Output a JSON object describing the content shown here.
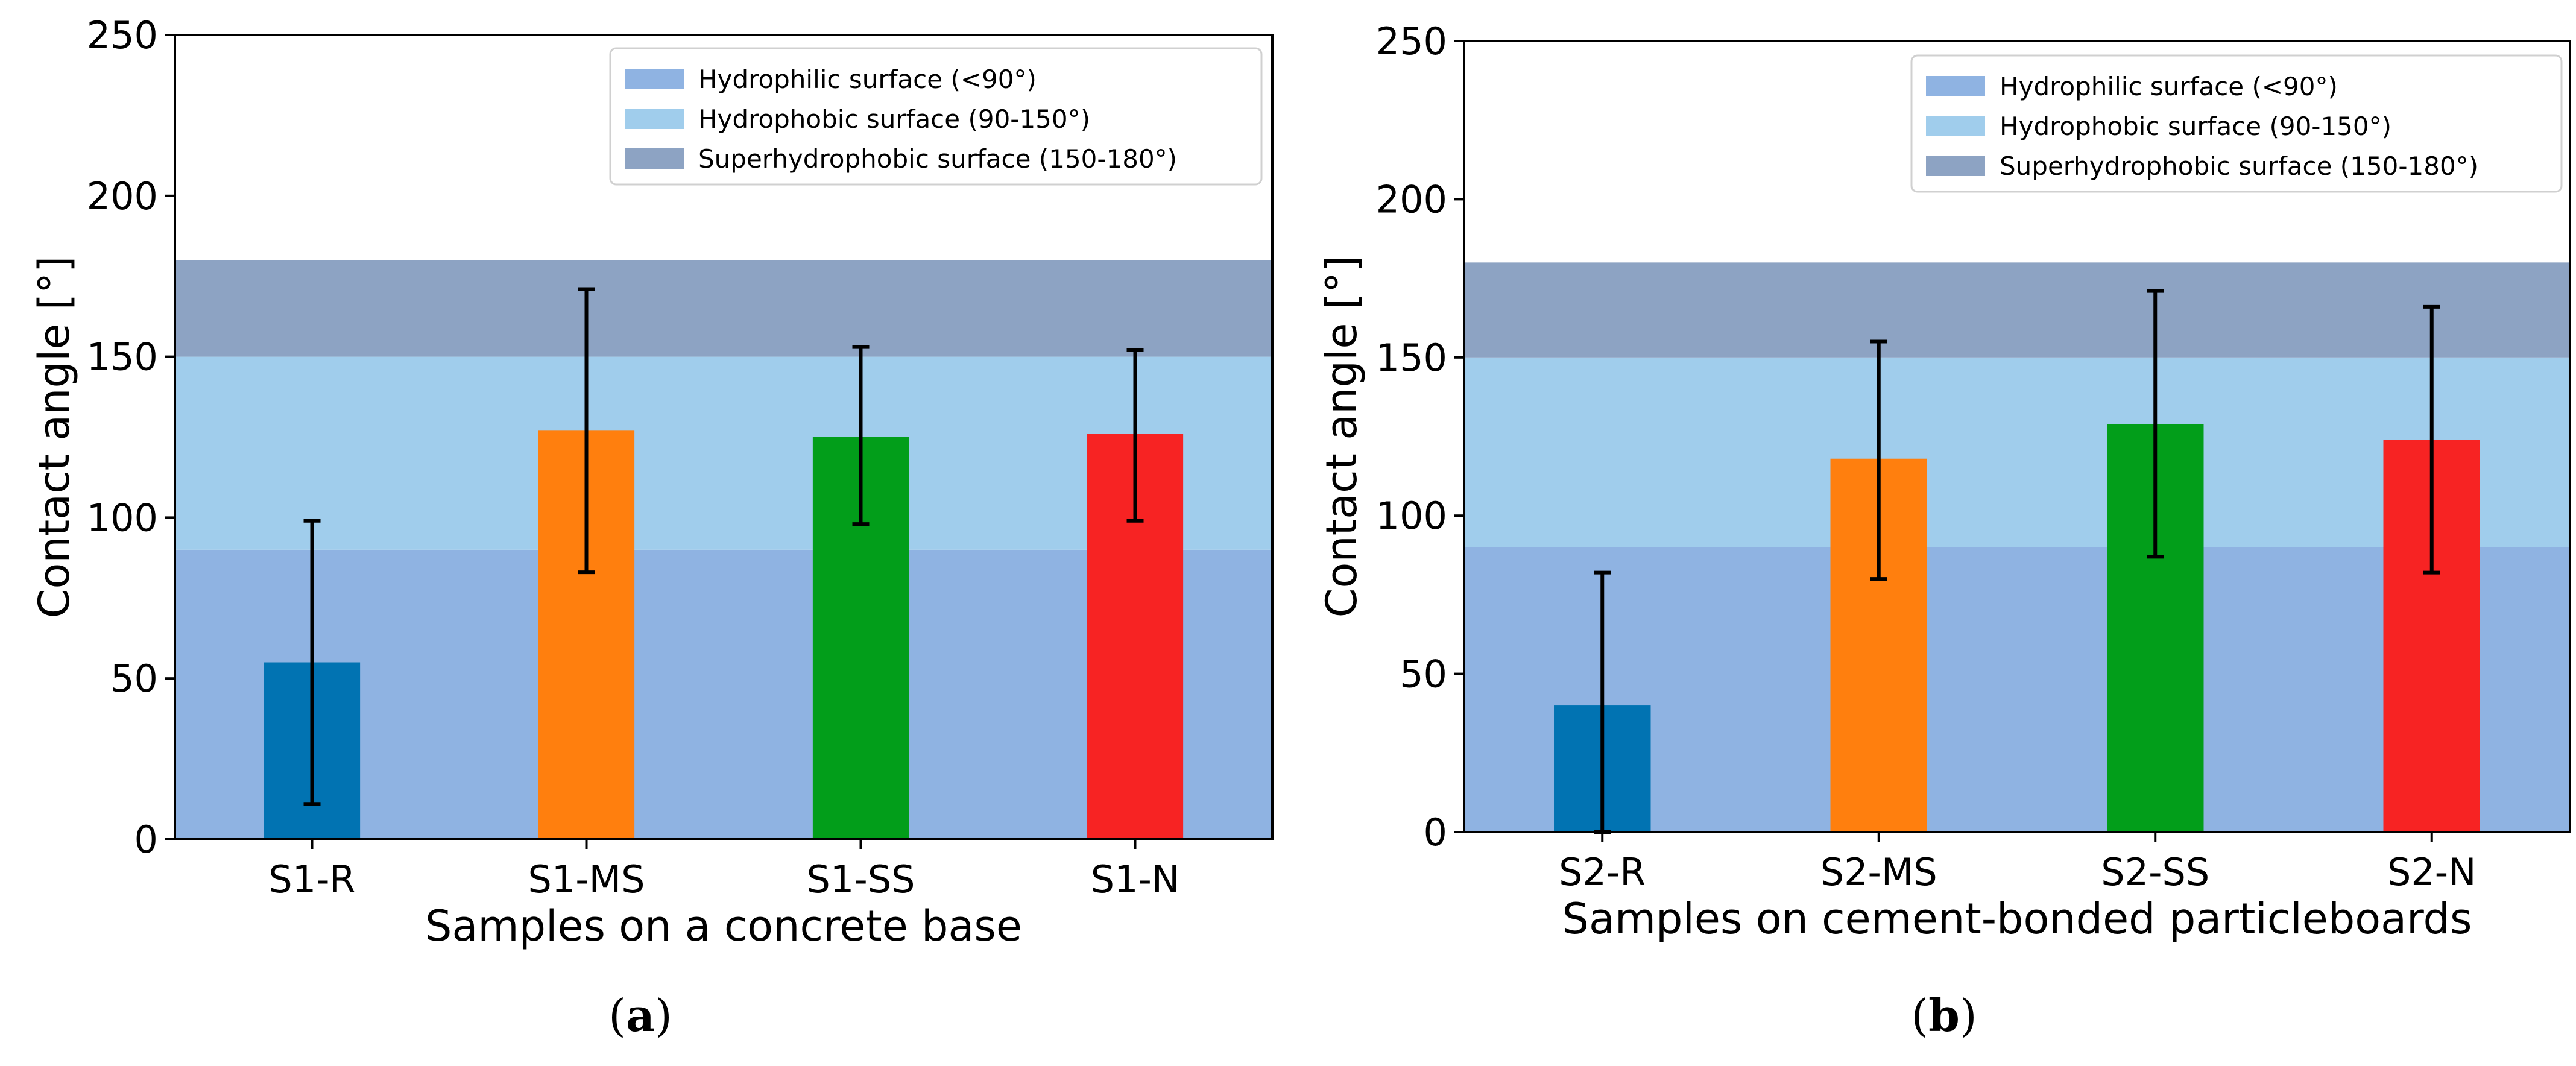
{
  "chart_data": [
    {
      "type": "bar",
      "caption": "a",
      "categories": [
        "S1-R",
        "S1-MS",
        "S1-SS",
        "S1-N"
      ],
      "values": [
        55,
        127,
        125,
        126
      ],
      "errors_lower": [
        44,
        44,
        27,
        27
      ],
      "errors_upper": [
        44,
        44,
        28,
        26
      ],
      "colors": [
        "#0173b2",
        "#ff7f0e",
        "#029e1a",
        "#f72323"
      ],
      "xlabel": "Samples on a concrete base",
      "ylabel": "Contact angle [°]",
      "ylim": [
        0,
        250
      ],
      "yticks": [
        0,
        50,
        100,
        150,
        200,
        250
      ],
      "bands": [
        {
          "label": "Hydrophilic surface (<90°)",
          "from": 0,
          "to": 90,
          "color": "#8fb3e2"
        },
        {
          "label": "Hydrophobic surface (90-150°)",
          "from": 90,
          "to": 150,
          "color": "#a0cdec"
        },
        {
          "label": "Superhydrophobic surface (150-180°)",
          "from": 150,
          "to": 180,
          "color": "#8da3c3"
        }
      ],
      "legend_position": "top-right"
    },
    {
      "type": "bar",
      "caption": "b",
      "categories": [
        "S2-R",
        "S2-MS",
        "S2-SS",
        "S2-N"
      ],
      "values": [
        40,
        118,
        129,
        124
      ],
      "errors_lower": [
        40,
        38,
        42,
        42
      ],
      "errors_upper": [
        42,
        37,
        42,
        42
      ],
      "colors": [
        "#0173b2",
        "#ff7f0e",
        "#029e1a",
        "#f72323"
      ],
      "xlabel": "Samples on cement-bonded particleboards",
      "ylabel": "Contact angle [°]",
      "ylim": [
        0,
        250
      ],
      "yticks": [
        0,
        50,
        100,
        150,
        200,
        250
      ],
      "bands": [
        {
          "label": "Hydrophilic surface (<90°)",
          "from": 0,
          "to": 90,
          "color": "#8fb3e2"
        },
        {
          "label": "Hydrophobic surface (90-150°)",
          "from": 90,
          "to": 150,
          "color": "#a0cdec"
        },
        {
          "label": "Superhydrophobic surface (150-180°)",
          "from": 150,
          "to": 180,
          "color": "#8da3c3"
        }
      ],
      "legend_position": "top-right"
    }
  ]
}
